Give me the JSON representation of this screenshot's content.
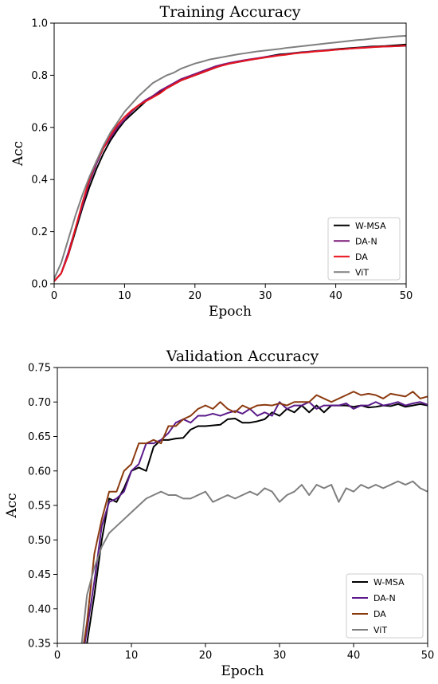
{
  "chart_data": [
    {
      "type": "line",
      "title": "Training Accuracy",
      "xlabel": "Epoch",
      "ylabel": "Acc",
      "xlim": [
        0,
        50
      ],
      "ylim": [
        0,
        1.0
      ],
      "xticks": [
        "0",
        "10",
        "20",
        "30",
        "40",
        "50"
      ],
      "yticks": [
        "0.0",
        "0.2",
        "0.4",
        "0.6",
        "0.8",
        "1.0"
      ],
      "grid": false,
      "legend": "bottom-right",
      "series": [
        {
          "name": "W-MSA",
          "color": "#000000",
          "x": [
            0,
            1,
            2,
            3,
            4,
            5,
            6,
            7,
            8,
            9,
            10,
            11,
            12,
            13,
            14,
            15,
            16,
            17,
            18,
            19,
            20,
            21,
            22,
            23,
            24,
            25,
            26,
            27,
            28,
            29,
            30,
            31,
            32,
            33,
            34,
            35,
            36,
            37,
            38,
            39,
            40,
            41,
            42,
            43,
            44,
            45,
            46,
            47,
            48,
            49,
            50
          ],
          "y": [
            0.01,
            0.04,
            0.11,
            0.2,
            0.29,
            0.37,
            0.44,
            0.5,
            0.55,
            0.59,
            0.625,
            0.65,
            0.675,
            0.7,
            0.72,
            0.735,
            0.75,
            0.765,
            0.78,
            0.79,
            0.8,
            0.81,
            0.82,
            0.83,
            0.84,
            0.845,
            0.85,
            0.855,
            0.86,
            0.865,
            0.87,
            0.875,
            0.88,
            0.882,
            0.885,
            0.888,
            0.89,
            0.893,
            0.895,
            0.897,
            0.9,
            0.902,
            0.904,
            0.906,
            0.908,
            0.91,
            0.911,
            0.912,
            0.914,
            0.916,
            0.918
          ]
        },
        {
          "name": "DA-N",
          "color": "#7a1a7a",
          "x": [
            0,
            1,
            2,
            3,
            4,
            5,
            6,
            7,
            8,
            9,
            10,
            11,
            12,
            13,
            14,
            15,
            16,
            17,
            18,
            19,
            20,
            21,
            22,
            23,
            24,
            25,
            26,
            27,
            28,
            29,
            30,
            31,
            32,
            33,
            34,
            35,
            36,
            37,
            38,
            39,
            40,
            41,
            42,
            43,
            44,
            45,
            46,
            47,
            48,
            49,
            50
          ],
          "y": [
            0.01,
            0.04,
            0.12,
            0.21,
            0.3,
            0.39,
            0.46,
            0.52,
            0.56,
            0.6,
            0.63,
            0.66,
            0.685,
            0.705,
            0.72,
            0.74,
            0.755,
            0.77,
            0.785,
            0.795,
            0.805,
            0.815,
            0.825,
            0.835,
            0.842,
            0.848,
            0.853,
            0.858,
            0.862,
            0.866,
            0.87,
            0.874,
            0.877,
            0.88,
            0.884,
            0.887,
            0.889,
            0.892,
            0.894,
            0.896,
            0.898,
            0.9,
            0.902,
            0.904,
            0.906,
            0.908,
            0.909,
            0.91,
            0.911,
            0.912,
            0.913
          ]
        },
        {
          "name": "DA",
          "color": "#e8141e",
          "x": [
            0,
            1,
            2,
            3,
            4,
            5,
            6,
            7,
            8,
            9,
            10,
            11,
            12,
            13,
            14,
            15,
            16,
            17,
            18,
            19,
            20,
            21,
            22,
            23,
            24,
            25,
            26,
            27,
            28,
            29,
            30,
            31,
            32,
            33,
            34,
            35,
            36,
            37,
            38,
            39,
            40,
            41,
            42,
            43,
            44,
            45,
            46,
            47,
            48,
            49,
            50
          ],
          "y": [
            0.01,
            0.04,
            0.11,
            0.21,
            0.31,
            0.4,
            0.47,
            0.52,
            0.57,
            0.61,
            0.64,
            0.665,
            0.685,
            0.7,
            0.715,
            0.73,
            0.75,
            0.765,
            0.78,
            0.79,
            0.8,
            0.81,
            0.82,
            0.83,
            0.838,
            0.845,
            0.85,
            0.855,
            0.86,
            0.864,
            0.868,
            0.872,
            0.876,
            0.879,
            0.883,
            0.886,
            0.888,
            0.891,
            0.893,
            0.895,
            0.898,
            0.9,
            0.902,
            0.904,
            0.905,
            0.907,
            0.909,
            0.91,
            0.911,
            0.912,
            0.914
          ]
        },
        {
          "name": "ViT",
          "color": "#7f7f7f",
          "x": [
            0,
            1,
            2,
            3,
            4,
            5,
            6,
            7,
            8,
            9,
            10,
            11,
            12,
            13,
            14,
            15,
            16,
            17,
            18,
            19,
            20,
            21,
            22,
            23,
            24,
            25,
            26,
            27,
            28,
            29,
            30,
            31,
            32,
            33,
            34,
            35,
            36,
            37,
            38,
            39,
            40,
            41,
            42,
            43,
            44,
            45,
            46,
            47,
            48,
            49,
            50
          ],
          "y": [
            0.02,
            0.08,
            0.17,
            0.26,
            0.34,
            0.41,
            0.47,
            0.53,
            0.58,
            0.62,
            0.66,
            0.69,
            0.72,
            0.745,
            0.77,
            0.785,
            0.8,
            0.81,
            0.825,
            0.835,
            0.845,
            0.852,
            0.86,
            0.865,
            0.87,
            0.875,
            0.88,
            0.884,
            0.888,
            0.892,
            0.895,
            0.898,
            0.901,
            0.905,
            0.908,
            0.911,
            0.914,
            0.917,
            0.92,
            0.923,
            0.926,
            0.929,
            0.932,
            0.935,
            0.937,
            0.94,
            0.943,
            0.945,
            0.948,
            0.95,
            0.951
          ]
        }
      ]
    },
    {
      "type": "line",
      "title": "Validation Accuracy",
      "xlabel": "Epoch",
      "ylabel": "Acc",
      "xlim": [
        0,
        50
      ],
      "ylim": [
        0.35,
        0.75
      ],
      "xticks": [
        "0",
        "10",
        "20",
        "30",
        "40",
        "50"
      ],
      "yticks": [
        "0.35",
        "0.40",
        "0.45",
        "0.50",
        "0.55",
        "0.60",
        "0.65",
        "0.70",
        "0.75"
      ],
      "grid": false,
      "legend": "bottom-right",
      "series": [
        {
          "name": "W-MSA",
          "color": "#000000",
          "x": [
            3,
            4,
            5,
            6,
            7,
            8,
            9,
            10,
            11,
            12,
            13,
            14,
            15,
            16,
            17,
            18,
            19,
            20,
            21,
            22,
            23,
            24,
            25,
            26,
            27,
            28,
            29,
            30,
            31,
            32,
            33,
            34,
            35,
            36,
            37,
            38,
            39,
            40,
            41,
            42,
            43,
            44,
            45,
            46,
            47,
            48,
            49,
            50
          ],
          "y": [
            0.3,
            0.35,
            0.42,
            0.5,
            0.56,
            0.555,
            0.575,
            0.6,
            0.605,
            0.6,
            0.635,
            0.645,
            0.645,
            0.647,
            0.648,
            0.66,
            0.665,
            0.665,
            0.666,
            0.667,
            0.675,
            0.676,
            0.67,
            0.67,
            0.672,
            0.675,
            0.685,
            0.68,
            0.69,
            0.685,
            0.695,
            0.685,
            0.695,
            0.685,
            0.695,
            0.695,
            0.695,
            0.693,
            0.695,
            0.692,
            0.693,
            0.695,
            0.694,
            0.697,
            0.693,
            0.695,
            0.697,
            0.695
          ]
        },
        {
          "name": "DA-N",
          "color": "#5a1a8a",
          "x": [
            3,
            4,
            5,
            6,
            7,
            8,
            9,
            10,
            11,
            12,
            13,
            14,
            15,
            16,
            17,
            18,
            19,
            20,
            21,
            22,
            23,
            24,
            25,
            26,
            27,
            28,
            29,
            30,
            31,
            32,
            33,
            34,
            35,
            36,
            37,
            38,
            39,
            40,
            41,
            42,
            43,
            44,
            45,
            46,
            47,
            48,
            49,
            50
          ],
          "y": [
            0.3,
            0.37,
            0.44,
            0.52,
            0.555,
            0.56,
            0.57,
            0.6,
            0.61,
            0.64,
            0.64,
            0.645,
            0.655,
            0.67,
            0.675,
            0.67,
            0.68,
            0.68,
            0.683,
            0.68,
            0.684,
            0.687,
            0.683,
            0.69,
            0.68,
            0.685,
            0.68,
            0.7,
            0.69,
            0.695,
            0.695,
            0.7,
            0.69,
            0.695,
            0.695,
            0.695,
            0.698,
            0.69,
            0.695,
            0.695,
            0.7,
            0.695,
            0.697,
            0.7,
            0.695,
            0.698,
            0.7,
            0.696
          ]
        },
        {
          "name": "DA",
          "color": "#8b3a0f",
          "x": [
            3,
            4,
            5,
            6,
            7,
            8,
            9,
            10,
            11,
            12,
            13,
            14,
            15,
            16,
            17,
            18,
            19,
            20,
            21,
            22,
            23,
            24,
            25,
            26,
            27,
            28,
            29,
            30,
            31,
            32,
            33,
            34,
            35,
            36,
            37,
            38,
            39,
            40,
            41,
            42,
            43,
            44,
            45,
            46,
            47,
            48,
            49,
            50
          ],
          "y": [
            0.31,
            0.38,
            0.48,
            0.53,
            0.57,
            0.57,
            0.6,
            0.61,
            0.64,
            0.64,
            0.645,
            0.64,
            0.665,
            0.665,
            0.675,
            0.68,
            0.69,
            0.695,
            0.69,
            0.7,
            0.69,
            0.685,
            0.695,
            0.69,
            0.695,
            0.696,
            0.695,
            0.698,
            0.695,
            0.7,
            0.7,
            0.7,
            0.71,
            0.705,
            0.7,
            0.705,
            0.71,
            0.715,
            0.71,
            0.712,
            0.71,
            0.705,
            0.712,
            0.71,
            0.708,
            0.715,
            0.705,
            0.708
          ]
        },
        {
          "name": "ViT",
          "color": "#7f7f7f",
          "x": [
            3,
            4,
            5,
            6,
            7,
            8,
            9,
            10,
            11,
            12,
            13,
            14,
            15,
            16,
            17,
            18,
            19,
            20,
            21,
            22,
            23,
            24,
            25,
            26,
            27,
            28,
            29,
            30,
            31,
            32,
            33,
            34,
            35,
            36,
            37,
            38,
            39,
            40,
            41,
            42,
            43,
            44,
            45,
            46,
            47,
            48,
            49,
            50
          ],
          "y": [
            0.32,
            0.42,
            0.46,
            0.49,
            0.51,
            0.52,
            0.53,
            0.54,
            0.55,
            0.56,
            0.565,
            0.57,
            0.565,
            0.565,
            0.56,
            0.56,
            0.565,
            0.57,
            0.555,
            0.56,
            0.565,
            0.56,
            0.565,
            0.57,
            0.565,
            0.575,
            0.57,
            0.555,
            0.565,
            0.57,
            0.58,
            0.565,
            0.58,
            0.575,
            0.58,
            0.555,
            0.575,
            0.57,
            0.58,
            0.575,
            0.58,
            0.575,
            0.58,
            0.585,
            0.58,
            0.585,
            0.575,
            0.57
          ]
        }
      ]
    }
  ]
}
